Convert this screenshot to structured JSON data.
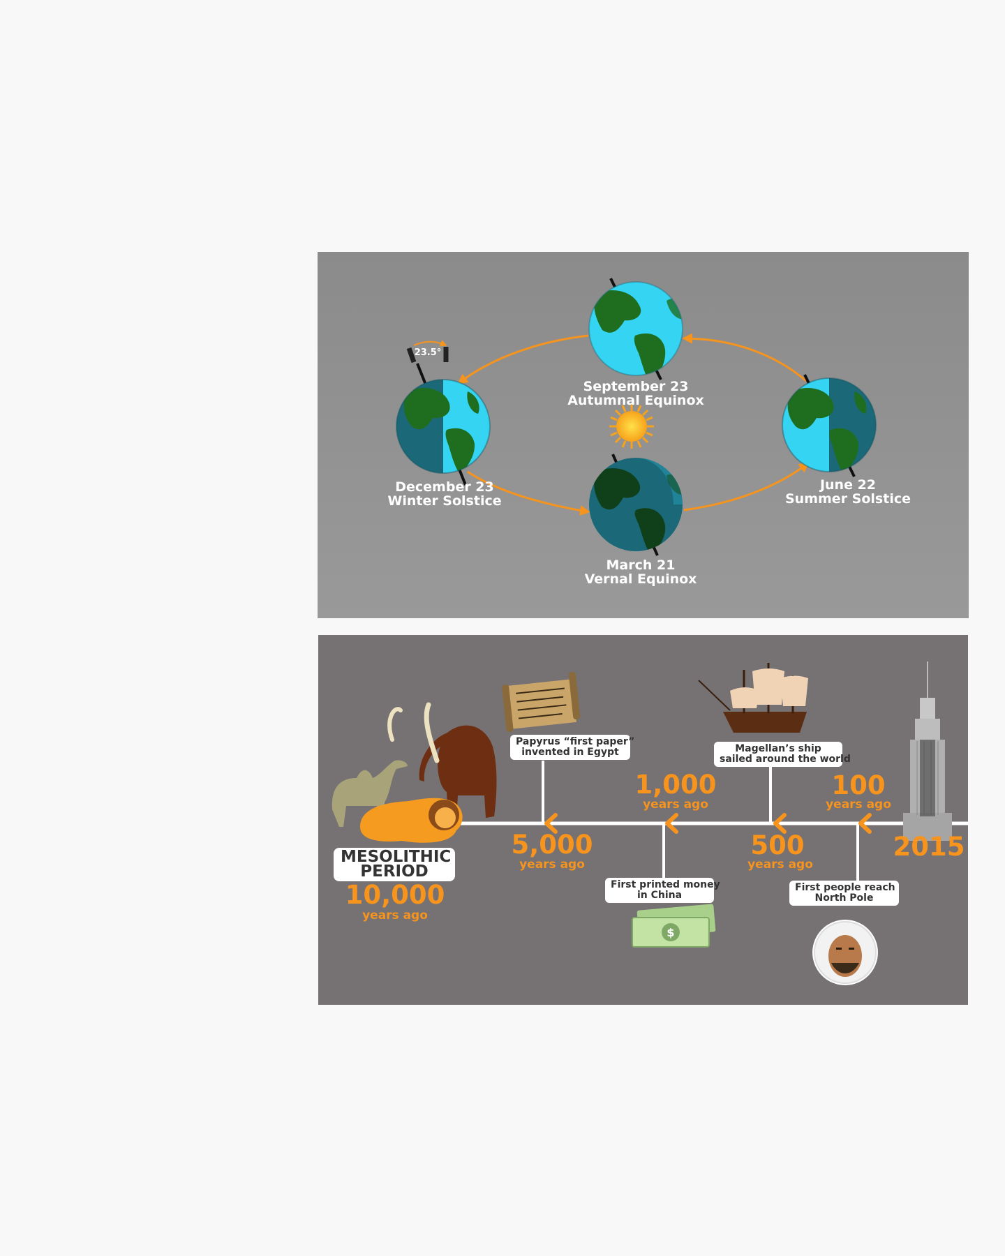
{
  "seasons": {
    "tilt_label": "23.5°",
    "labels": {
      "autumnal": {
        "date": "September 23",
        "name": "Autumnal Equinox"
      },
      "winter": {
        "date": "December 23",
        "name": "Winter Solstice"
      },
      "summer": {
        "date": "June 22",
        "name": "Summer Solstice"
      },
      "vernal": {
        "date": "March 21",
        "name": "Vernal Equinox"
      }
    },
    "colors": {
      "earth_lit": "#35d4f2",
      "earth_dark": "#1b6878",
      "land": "#1f6e1f",
      "orbit": "#f7941d",
      "sun": "#ffc21a"
    }
  },
  "timeline": {
    "mesolithic": {
      "line1": "MESOLITHIC",
      "line2": "PERIOD",
      "year": "10,000",
      "sub": "years ago"
    },
    "y5000": {
      "year": "5,000",
      "sub": "years ago"
    },
    "y1000": {
      "year": "1,000",
      "sub": "years ago"
    },
    "y500": {
      "year": "500",
      "sub": "years ago"
    },
    "y100": {
      "year": "100",
      "sub": "years ago"
    },
    "y2015": {
      "year": "2015"
    },
    "events": {
      "papyrus": {
        "line1": "Papyrus “first paper”",
        "line2": "invented in Egypt"
      },
      "money": {
        "line1": "First printed money",
        "line2": "in China"
      },
      "magellan": {
        "line1": "Magellan’s ship",
        "line2": "sailed around the world"
      },
      "pole": {
        "line1": "First people reach",
        "line2": "North Pole"
      }
    },
    "money_symbol": "$",
    "colors": {
      "accent": "#f7941d",
      "background": "#767173"
    }
  }
}
